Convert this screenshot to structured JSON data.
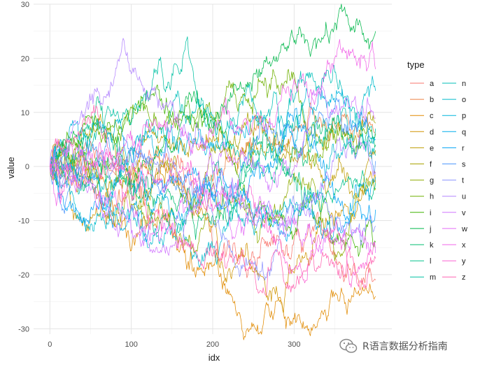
{
  "chart_data": {
    "type": "line",
    "xlabel": "idx",
    "ylabel": "value",
    "xlim": [
      -20,
      420
    ],
    "ylim": [
      -31,
      30
    ],
    "x_ticks": [
      0,
      100,
      200,
      300
    ],
    "y_ticks": [
      30,
      20,
      10,
      0,
      -10,
      -20,
      -30
    ],
    "legend_title": "type",
    "legend_position": "right",
    "grid": true,
    "n_points": 400,
    "series": [
      {
        "name": "a",
        "color": "#F8766D",
        "end": -21
      },
      {
        "name": "b",
        "color": "#EE8043",
        "end": 6
      },
      {
        "name": "c",
        "color": "#E18A00",
        "end": -24
      },
      {
        "name": "d",
        "color": "#D09400",
        "end": -3
      },
      {
        "name": "e",
        "color": "#BE9C00",
        "end": 3
      },
      {
        "name": "f",
        "color": "#A8A300",
        "end": 8
      },
      {
        "name": "g",
        "color": "#8EAB00",
        "end": -4
      },
      {
        "name": "h",
        "color": "#6FB000",
        "end": 6
      },
      {
        "name": "i",
        "color": "#3EB400",
        "end": -14
      },
      {
        "name": "j",
        "color": "#00B74A",
        "end": 25
      },
      {
        "name": "k",
        "color": "#00BC6F",
        "end": 4
      },
      {
        "name": "l",
        "color": "#00C08B",
        "end": -3
      },
      {
        "name": "m",
        "color": "#00C1A3",
        "end": 7
      },
      {
        "name": "n",
        "color": "#00BFB9",
        "end": 2
      },
      {
        "name": "o",
        "color": "#00BBCC",
        "end": 14
      },
      {
        "name": "p",
        "color": "#00B5DD",
        "end": 5
      },
      {
        "name": "q",
        "color": "#00ADEB",
        "end": -2
      },
      {
        "name": "r",
        "color": "#00A3F5",
        "end": -8
      },
      {
        "name": "s",
        "color": "#4F97FC",
        "end": 1
      },
      {
        "name": "t",
        "color": "#8B93FF",
        "end": -11
      },
      {
        "name": "u",
        "color": "#B385FF",
        "end": -1
      },
      {
        "name": "v",
        "color": "#D177FF",
        "end": 9
      },
      {
        "name": "w",
        "color": "#E46DF6",
        "end": -16
      },
      {
        "name": "x",
        "color": "#F166E8",
        "end": 18
      },
      {
        "name": "y",
        "color": "#FA62D3",
        "end": -15
      },
      {
        "name": "z",
        "color": "#FF64B2",
        "end": -17
      }
    ]
  },
  "watermark": {
    "text": "R语言数据分析指南",
    "icon": "wechat-icon"
  }
}
